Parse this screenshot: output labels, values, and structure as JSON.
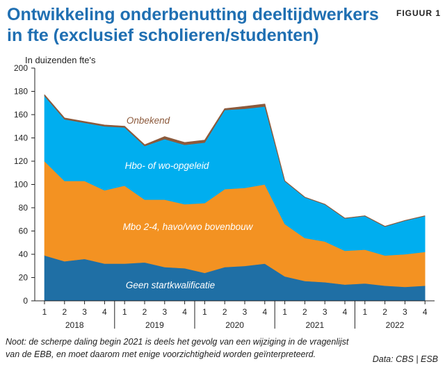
{
  "header": {
    "title": "Ontwikkeling onderbenutting deeltijdwerkers in fte (exclusief scholieren/studenten)",
    "figure_label": "FIGUUR 1",
    "unit_label": "In duizenden fte's"
  },
  "footer": {
    "note": "Noot: de scherpe daling begin 2021 is deels het gevolg van een wijziging in de vragenlijst van de EBB, en moet daarom met enige voorzichtigheid worden geïnterpreteerd.",
    "source": "Data: CBS | ESB"
  },
  "colors": {
    "geen": "#1f6fa5",
    "mbo": "#f39222",
    "hbo": "#00aeef",
    "onbekend": "#8c5a3c",
    "onbekend_label": "#8c5a3c"
  },
  "chart_data": {
    "type": "area",
    "stacked": true,
    "title": "Ontwikkeling onderbenutting deeltijdwerkers in fte (exclusief scholieren/studenten)",
    "ylabel": "In duizenden fte's",
    "ylim": [
      0,
      200
    ],
    "yticks": [
      0,
      20,
      40,
      60,
      80,
      100,
      120,
      140,
      160,
      180,
      200
    ],
    "x": [
      "1",
      "2",
      "3",
      "4",
      "1",
      "2",
      "3",
      "4",
      "1",
      "2",
      "3",
      "4",
      "1",
      "2",
      "3",
      "4",
      "1",
      "2",
      "3",
      "4"
    ],
    "years": [
      "2018",
      "2019",
      "2020",
      "2021",
      "2022"
    ],
    "series": [
      {
        "name": "Geen startkwalificatie",
        "values": [
          39,
          34,
          36,
          32,
          32,
          33,
          29,
          28,
          24,
          29,
          30,
          32,
          21,
          17,
          16,
          14,
          15,
          13,
          12,
          13
        ]
      },
      {
        "name": "Mbo 2-4, havo/vwo bovenbouw",
        "values": [
          81,
          69,
          67,
          63,
          67,
          54,
          58,
          55,
          60,
          67,
          67,
          68,
          45,
          37,
          35,
          29,
          29,
          26,
          28,
          29
        ]
      },
      {
        "name": "Hbo- of wo-opgeleid",
        "values": [
          56,
          53,
          50,
          55,
          50,
          46,
          52,
          51,
          52,
          68,
          68,
          67,
          37,
          35,
          32,
          28,
          29,
          25,
          29,
          31
        ]
      },
      {
        "name": "Onbekend",
        "values": [
          1,
          1,
          1,
          1,
          1,
          1,
          2,
          2,
          2,
          1,
          2,
          2,
          0,
          0,
          0,
          0,
          0,
          0,
          0,
          0
        ]
      }
    ],
    "grid": false,
    "legend": "inline labels"
  }
}
